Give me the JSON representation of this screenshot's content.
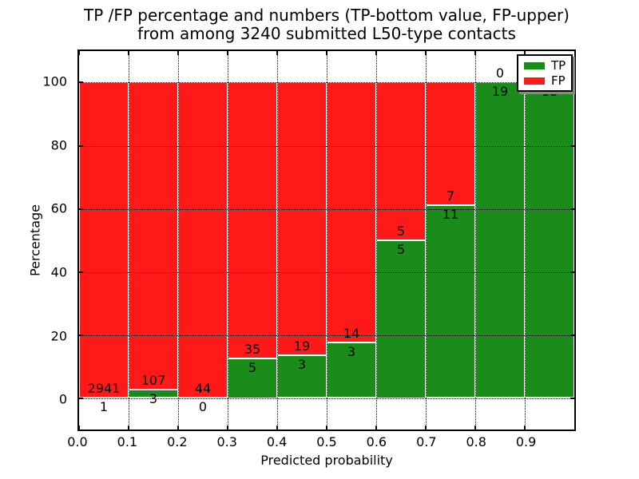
{
  "title": {
    "line1": "TP /FP percentage and numbers (TP-bottom value, FP-upper)",
    "line2": "from among 3240 submitted L50-type contacts"
  },
  "axes": {
    "xlabel": "Predicted probability",
    "ylabel": "Percentage",
    "xticks": [
      {
        "value": 0.0,
        "label": "0.0"
      },
      {
        "value": 0.1,
        "label": "0.1"
      },
      {
        "value": 0.2,
        "label": "0.2"
      },
      {
        "value": 0.3,
        "label": "0.3"
      },
      {
        "value": 0.4,
        "label": "0.4"
      },
      {
        "value": 0.5,
        "label": "0.5"
      },
      {
        "value": 0.6,
        "label": "0.6"
      },
      {
        "value": 0.7,
        "label": "0.7"
      },
      {
        "value": 0.8,
        "label": "0.8"
      },
      {
        "value": 0.9,
        "label": "0.9"
      }
    ],
    "yticks": [
      {
        "value": 0,
        "label": "0"
      },
      {
        "value": 20,
        "label": "20"
      },
      {
        "value": 40,
        "label": "40"
      },
      {
        "value": 60,
        "label": "60"
      },
      {
        "value": 80,
        "label": "80"
      },
      {
        "value": 100,
        "label": "100"
      }
    ]
  },
  "legend": {
    "position": "upper right",
    "items": [
      {
        "label": "TP",
        "color": "#198c19"
      },
      {
        "label": "FP",
        "color": "#ff1919"
      }
    ]
  },
  "colors": {
    "tp_green": "#198c19",
    "fp_red": "#ff1919",
    "grid": "#000000",
    "background": "#ffffff",
    "legend_shadow": "#888888"
  },
  "chart_data": {
    "type": "bar",
    "stacked": true,
    "title": "TP /FP percentage and numbers (TP-bottom value, FP-upper) from among 3240 submitted L50-type contacts",
    "xlabel": "Predicted probability",
    "ylabel": "Percentage",
    "xlim": [
      0.0,
      1.0
    ],
    "ylim": [
      -10,
      110
    ],
    "grid": "dotted, drawn over bars",
    "legend_position": "upper right",
    "total_submitted_contacts": 3240,
    "bin_width": 0.1,
    "series_names": [
      "TP",
      "FP"
    ],
    "bins": [
      {
        "range": "0.0-0.1",
        "tp": 1,
        "fp": 2941,
        "tp_pct": 0.03,
        "tp_label": "1",
        "fp_label": "2941"
      },
      {
        "range": "0.1-0.2",
        "tp": 3,
        "fp": 107,
        "tp_pct": 2.73,
        "tp_label": "3",
        "fp_label": "107"
      },
      {
        "range": "0.2-0.3",
        "tp": 0,
        "fp": 44,
        "tp_pct": 0.0,
        "tp_label": "0",
        "fp_label": "44"
      },
      {
        "range": "0.3-0.4",
        "tp": 5,
        "fp": 35,
        "tp_pct": 12.5,
        "tp_label": "5",
        "fp_label": "35"
      },
      {
        "range": "0.4-0.5",
        "tp": 3,
        "fp": 19,
        "tp_pct": 13.64,
        "tp_label": "3",
        "fp_label": "19"
      },
      {
        "range": "0.5-0.6",
        "tp": 3,
        "fp": 14,
        "tp_pct": 17.65,
        "tp_label": "3",
        "fp_label": "14"
      },
      {
        "range": "0.6-0.7",
        "tp": 5,
        "fp": 5,
        "tp_pct": 50.0,
        "tp_label": "5",
        "fp_label": "5"
      },
      {
        "range": "0.7-0.8",
        "tp": 11,
        "fp": 7,
        "tp_pct": 61.11,
        "tp_label": "11",
        "fp_label": "7"
      },
      {
        "range": "0.8-0.9",
        "tp": 19,
        "fp": 0,
        "tp_pct": 100.0,
        "tp_label": "19",
        "fp_label": "0"
      },
      {
        "range": "0.9-1.0",
        "tp": 18,
        "fp": 0,
        "tp_pct": 100.0,
        "tp_label": "18",
        "fp_label": ""
      }
    ]
  }
}
